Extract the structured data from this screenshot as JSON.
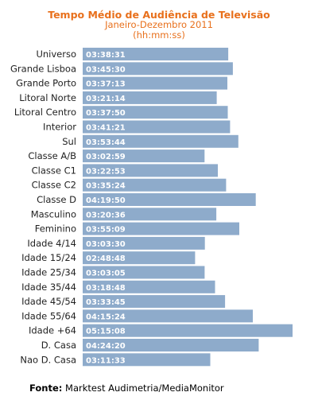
{
  "chart_data": {
    "type": "bar",
    "orientation": "horizontal",
    "title": "Tempo Médio de Audiência  de Televisão",
    "subtitle": "Janeiro-Dezembro 2011",
    "unit_label": "(hh:mm:ss)",
    "bar_color": "#8eabcb",
    "categories": [
      "Universo",
      "Grande Lisboa",
      "Grande Porto",
      "Litoral Norte",
      "Litoral Centro",
      "Interior",
      "Sul",
      "Classe A/B",
      "Classe C1",
      "Classe C2",
      "Classe D",
      "Masculino",
      "Feminino",
      "Idade 4/14",
      "Idade 15/24",
      "Idade 25/34",
      "Idade 35/44",
      "Idade 45/54",
      "Idade 55/64",
      "Idade +64",
      "D. Casa",
      "Nao D. Casa"
    ],
    "labels": [
      "03:38:31",
      "03:45:30",
      "03:37:13",
      "03:21:14",
      "03:37:50",
      "03:41:21",
      "03:53:44",
      "03:02:59",
      "03:22:53",
      "03:35:24",
      "04:19:50",
      "03:20:36",
      "03:55:09",
      "03:03:30",
      "02:48:48",
      "03:03:05",
      "03:18:48",
      "03:33:45",
      "04:15:24",
      "05:15:08",
      "04:24:20",
      "03:11:33"
    ],
    "values_seconds": [
      13111,
      13530,
      13033,
      12074,
      13070,
      13281,
      14024,
      10979,
      12173,
      12924,
      15590,
      12036,
      14109,
      11010,
      10128,
      10985,
      11928,
      12825,
      15324,
      18908,
      15860,
      11493
    ]
  },
  "source": {
    "label": "Fonte:",
    "text": "Marktest Audimetria/MediaMonitor"
  }
}
